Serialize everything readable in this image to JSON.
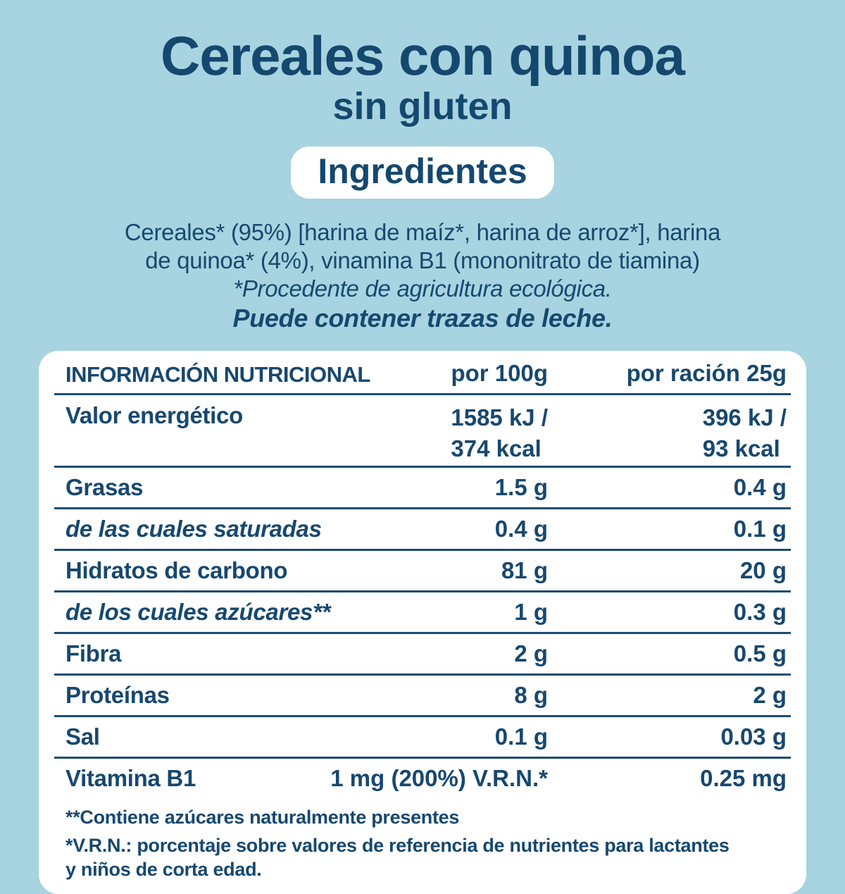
{
  "page": {
    "background_color": "#A7D4E0",
    "text_color": "#17486F",
    "panel_color": "#FFFFFF"
  },
  "header": {
    "title": "Cereales con quinoa",
    "subtitle": "sin gluten",
    "ingredients_badge": "Ingredientes",
    "ingredients_line1": "Cereales* (95%) [harina de maíz*, harina de arroz*], harina",
    "ingredients_line2": "de quinoa* (4%), vinamina B1 (mononitrato de tiamina)",
    "organic_note": "*Procedente de agricultura ecológica.",
    "allergen_note": "Puede contener trazas de leche."
  },
  "nutrition_table": {
    "title": "INFORMACIÓN NUTRICIONAL",
    "col_per100": "por 100g",
    "col_per25": "por ración 25g",
    "energy": {
      "label": "Valor energético",
      "per100_line1": "1585 kJ /",
      "per100_line2": "374 kcal",
      "per25_line1": "396 kJ /",
      "per25_line2": "93 kcal"
    },
    "rows": [
      {
        "label": "Grasas",
        "per100": "1.5 g",
        "per25": "0.4 g"
      },
      {
        "label": "de las cuales saturadas",
        "per100": "0.4 g",
        "per25": "0.1 g"
      },
      {
        "label": "Hidratos de carbono",
        "per100": "81 g",
        "per25": "20 g"
      },
      {
        "label": "de los cuales azúcares**",
        "per100": "1 g",
        "per25": "0.3 g"
      },
      {
        "label": "Fibra",
        "per100": "2 g",
        "per25": "0.5 g"
      },
      {
        "label": "Proteínas",
        "per100": "8 g",
        "per25": "2 g"
      },
      {
        "label": "Sal",
        "per100": "0.1 g",
        "per25": "0.03 g"
      },
      {
        "label": "Vitamina B1",
        "per100": "1 mg (200%) V.R.N.*",
        "per25": "0.25 mg"
      }
    ],
    "footnotes": {
      "sugars": "**Contiene azúcares naturalmente presentes",
      "vrn_line1": "*V.R.N.: porcentaje sobre valores de referencia de nutrientes para lactantes",
      "vrn_line2": "y niños de corta edad."
    }
  }
}
